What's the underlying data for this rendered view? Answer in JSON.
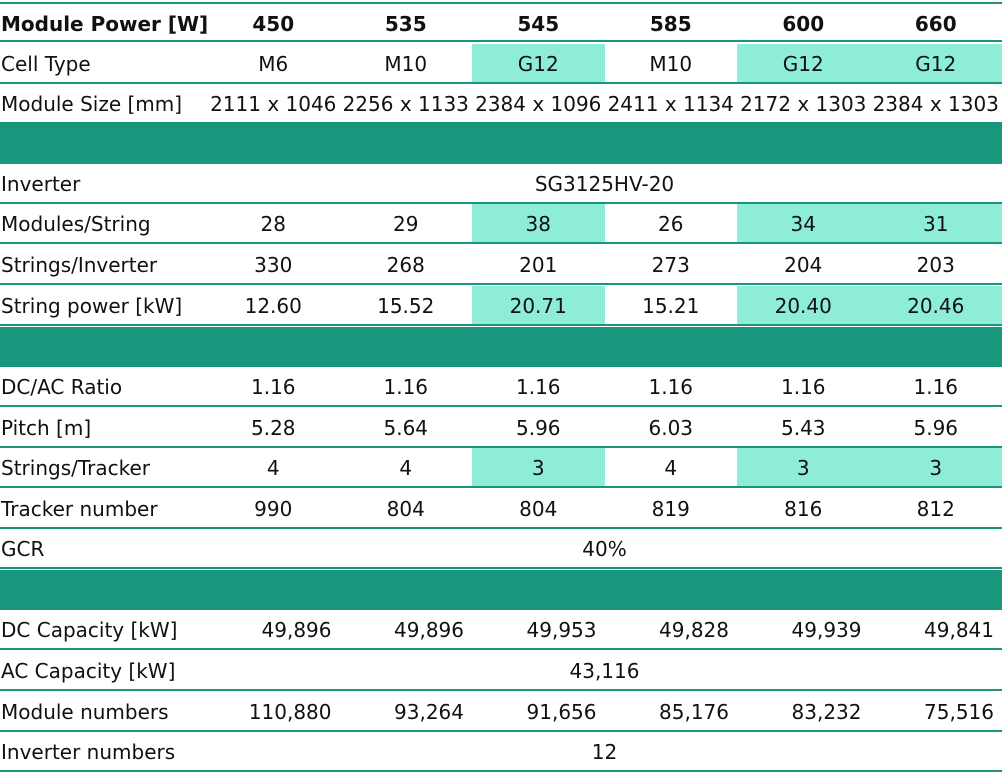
{
  "table": {
    "header": {
      "label": "Module Power [W]",
      "values": [
        "450",
        "535",
        "545",
        "585",
        "600",
        "660"
      ]
    },
    "cell_type": {
      "label": "Cell Type",
      "values": [
        "M6",
        "M10",
        "G12",
        "M10",
        "G12",
        "G12"
      ]
    },
    "module_size": {
      "label": "Module Size [mm]",
      "values": [
        "2111 x 1046",
        "2256 x 1133",
        "2384 x 1096",
        "2411 x 1134",
        "2172 x 1303",
        "2384 x 1303"
      ]
    },
    "inverter": {
      "label": "Inverter",
      "value": "SG3125HV-20"
    },
    "modules_string": {
      "label": "Modules/String",
      "values": [
        "28",
        "29",
        "38",
        "26",
        "34",
        "31"
      ]
    },
    "strings_inverter": {
      "label": "Strings/Inverter",
      "values": [
        "330",
        "268",
        "201",
        "273",
        "204",
        "203"
      ]
    },
    "string_power": {
      "label": "String power [kW]",
      "values": [
        "12.60",
        "15.52",
        "20.71",
        "15.21",
        "20.40",
        "20.46"
      ]
    },
    "dc_ac_ratio": {
      "label": "DC/AC Ratio",
      "values": [
        "1.16",
        "1.16",
        "1.16",
        "1.16",
        "1.16",
        "1.16"
      ]
    },
    "pitch": {
      "label": "Pitch [m]",
      "values": [
        "5.28",
        "5.64",
        "5.96",
        "6.03",
        "5.43",
        "5.96"
      ]
    },
    "strings_tracker": {
      "label": "Strings/Tracker",
      "values": [
        "4",
        "4",
        "3",
        "4",
        "3",
        "3"
      ]
    },
    "tracker_number": {
      "label": "Tracker number",
      "values": [
        "990",
        "804",
        "804",
        "819",
        "816",
        "812"
      ]
    },
    "gcr": {
      "label": "GCR",
      "value": "40%"
    },
    "dc_capacity": {
      "label": "DC Capacity [kW]",
      "values": [
        "49,896",
        "49,896",
        "49,953",
        "49,828",
        "49,939",
        "49,841"
      ]
    },
    "ac_capacity": {
      "label": "AC Capacity [kW]",
      "value": "43,116"
    },
    "module_numbers": {
      "label": "Module numbers",
      "values": [
        "110,880",
        "93,264",
        "91,656",
        "85,176",
        "83,232",
        "75,516"
      ]
    },
    "inverter_numbers": {
      "label": "Inverter numbers",
      "value": "12"
    }
  },
  "colors": {
    "band": "#18977d",
    "highlight": "#8eedd7",
    "rule": "#18957a"
  }
}
